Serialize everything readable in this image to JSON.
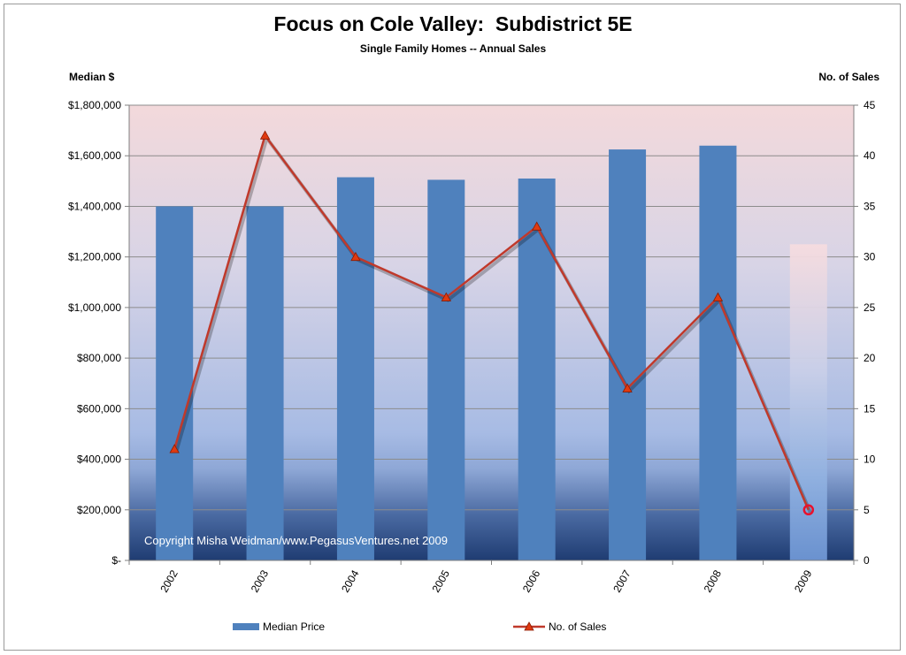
{
  "title": "Focus on Cole Valley:  Subdistrict 5E",
  "subtitle": "Single Family Homes -- Annual Sales",
  "left_axis_title": "Median $",
  "right_axis_title": "No. of Sales",
  "copyright": "Copyright Misha Weidman/www.PegasusVentures.net 2009",
  "chart_data": {
    "type": "bar",
    "categories": [
      "2002",
      "2003",
      "2004",
      "2005",
      "2006",
      "2007",
      "2008",
      "2009"
    ],
    "left_axis": {
      "label": "Median $",
      "ylim": [
        0,
        1800000
      ],
      "ticks": [
        0,
        200000,
        400000,
        600000,
        800000,
        1000000,
        1200000,
        1400000,
        1600000,
        1800000
      ],
      "tick_labels": [
        "$-",
        "$200,000",
        "$400,000",
        "$600,000",
        "$800,000",
        "$1,000,000",
        "$1,200,000",
        "$1,400,000",
        "$1,600,000",
        "$1,800,000"
      ]
    },
    "right_axis": {
      "label": "No. of Sales",
      "ylim": [
        0,
        45
      ],
      "ticks": [
        0,
        5,
        10,
        15,
        20,
        25,
        30,
        35,
        40,
        45
      ],
      "tick_labels": [
        "0",
        "5",
        "10",
        "15",
        "20",
        "25",
        "30",
        "35",
        "40",
        "45"
      ]
    },
    "series": [
      {
        "name": "Median Price",
        "type": "bar",
        "axis": "left",
        "color": "#4f81bd",
        "values": [
          1400000,
          1400000,
          1515000,
          1505000,
          1510000,
          1625000,
          1640000,
          1250000
        ]
      },
      {
        "name": "No. of Sales",
        "type": "line",
        "axis": "right",
        "color": "#c0392b",
        "marker_color": "#e03a10",
        "values": [
          11,
          42,
          30,
          26,
          33,
          17,
          26,
          5
        ]
      }
    ],
    "grid": true,
    "legend": "bottom"
  }
}
